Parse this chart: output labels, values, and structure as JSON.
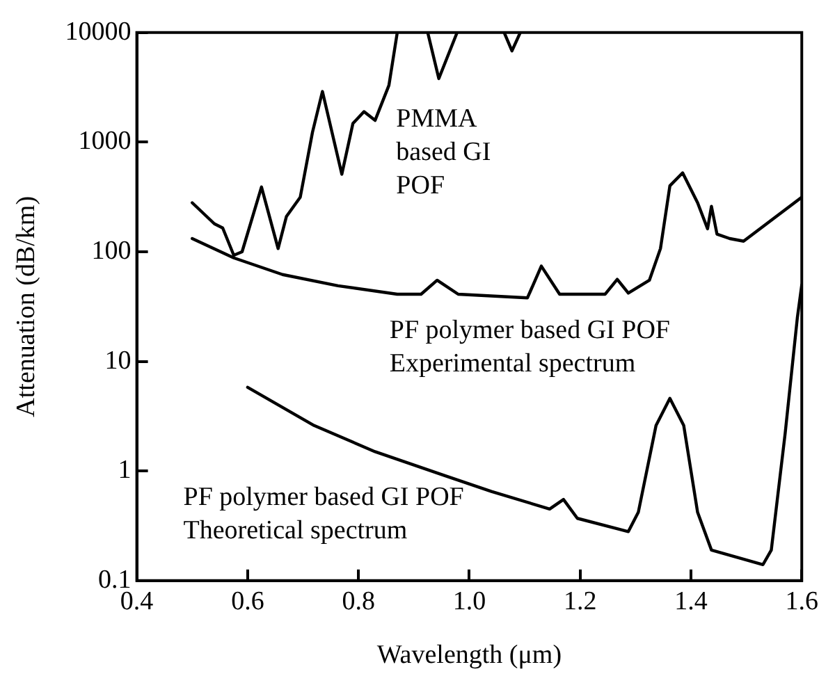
{
  "chart_data": {
    "type": "line",
    "xlabel": "Wavelength (μm)",
    "ylabel": "Attenuation (dB/km)",
    "log": "y",
    "grid": false,
    "legend": false,
    "marker": "none",
    "line_style": "solid",
    "xlim": [
      0.4,
      1.6
    ],
    "xticks": [
      0.4,
      0.6,
      0.8,
      {
        "value": 1,
        "label": "1.0"
      },
      1.2,
      1.4,
      1.6
    ],
    "ylim": [
      0.1,
      10000
    ],
    "yticks": [
      0.1,
      1,
      10,
      100,
      1000,
      10000
    ],
    "series": [
      {
        "color": "#000000",
        "x": [
          0.5,
          0.54,
          0.555,
          0.575,
          0.59,
          0.625,
          0.655,
          0.67,
          0.695,
          0.717,
          0.735,
          0.77,
          0.79,
          0.81,
          0.83,
          0.855,
          0.87,
          0.9,
          0.925,
          0.945,
          0.978,
          1.0,
          1.063,
          1.077,
          1.092
        ],
        "values": [
          280,
          180,
          165,
          93,
          100,
          390,
          107,
          210,
          315,
          1230,
          2900,
          510,
          1480,
          1900,
          1580,
          3300,
          10000,
          null,
          10000,
          3800,
          10000,
          null,
          10000,
          6800,
          10000
        ]
      },
      {
        "color": "#000000",
        "x": [
          0.5,
          0.575,
          0.663,
          0.763,
          0.87,
          0.913,
          0.942,
          0.98,
          1.105,
          1.13,
          1.163,
          1.245,
          1.267,
          1.287,
          1.325,
          1.345,
          1.362,
          1.385,
          1.412,
          1.43,
          1.437,
          1.447,
          1.47,
          1.495,
          1.6
        ],
        "values": [
          132,
          88,
          62,
          49,
          41,
          41,
          55,
          41,
          38,
          74,
          41,
          41,
          56,
          42,
          55,
          107,
          400,
          525,
          280,
          162,
          260,
          145,
          132,
          125,
          315
        ]
      },
      {
        "color": "#000000",
        "x": [
          0.6,
          0.72,
          0.83,
          0.955,
          1.04,
          1.145,
          1.17,
          1.195,
          1.287,
          1.305,
          1.337,
          1.362,
          1.387,
          1.412,
          1.437,
          1.53,
          1.545,
          1.57,
          1.592,
          1.6
        ],
        "values": [
          5.8,
          2.6,
          1.5,
          0.91,
          0.65,
          0.45,
          0.55,
          0.37,
          0.28,
          0.42,
          2.6,
          4.6,
          2.6,
          0.42,
          0.19,
          0.14,
          0.19,
          2.2,
          25,
          50
        ]
      }
    ],
    "annotations": [
      "PMMA\nbased GI\nPOF",
      "PF polymer based GI POF\nExperimental spectrum",
      "PF polymer based GI POF\nTheoretical spectrum"
    ]
  }
}
